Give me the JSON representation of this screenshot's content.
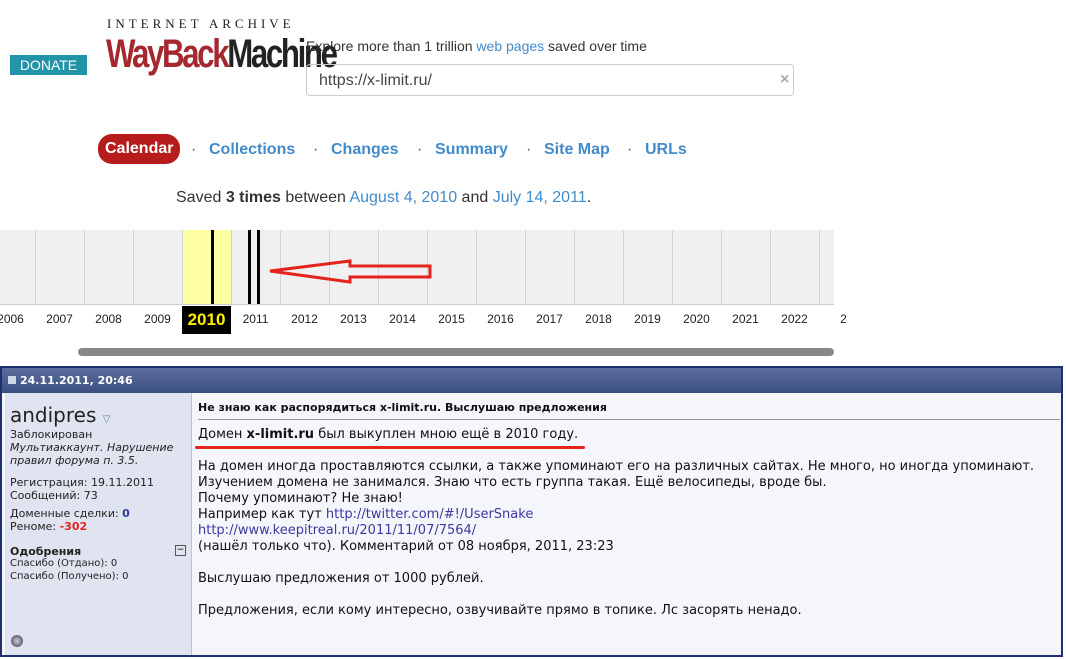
{
  "header": {
    "donate": "DONATE",
    "logo_top": "INTERNET ARCHIVE",
    "logo_wayback": "WayBack",
    "logo_machine": "Machine",
    "explore_prefix": "Explore more than 1 trillion ",
    "explore_link": "web pages",
    "explore_suffix": " saved over time",
    "search_value": "https://x-limit.ru/",
    "clear": "×"
  },
  "tabs": [
    "Calendar",
    "Collections",
    "Changes",
    "Summary",
    "Site Map",
    "URLs"
  ],
  "saved": {
    "prefix": "Saved ",
    "count": "3 times",
    "between": " between ",
    "first": "August 4, 2010",
    "and": " and ",
    "last": "July 14, 2011",
    "end": "."
  },
  "timeline": {
    "years": [
      "2006",
      "2007",
      "2008",
      "2009",
      "2010",
      "2011",
      "2012",
      "2013",
      "2014",
      "2015",
      "2016",
      "2017",
      "2018",
      "2019",
      "2020",
      "2021",
      "2022",
      "2"
    ],
    "selected": "2010",
    "highlight_color": "#ffffa5"
  },
  "post": {
    "date": "24.11.2011, 20:46",
    "user": "andipres",
    "status": "Заблокирован",
    "reason1": "Мультиаккаунт. Нарушение",
    "reason2": "правил форума п. 3.5.",
    "reg": "Регистрация: 19.11.2011",
    "msgs": "Сообщений: 73",
    "deals_label": "Доменные сделки: ",
    "deals": "0",
    "rep_label": "Реноме: ",
    "rep": "-302",
    "thanks_title": "Одобрения",
    "given": "Спасибо (Отдано): 0",
    "received": "Спасибо (Получено): 0",
    "title": "Не знаю как распорядиться x-limit.ru. Выслушаю предложения",
    "l1a": "Домен ",
    "l1b": "x-limit.ru",
    "l1c": " был выкуплен мною ещё в 2010 году.",
    "l2": "На домен иногда проставляются ссылки, а также упоминают его на различных сайтах. Не много, но иногда упоминают.",
    "l3": "Изучением домена не занимался. Знаю что есть группа такая. Ещё велосипеды, вроде бы.",
    "l4": "Почему упоминают? Не знаю!",
    "l5a": "Например как тут ",
    "l5b": "http://twitter.com/#!/UserSnake",
    "l6": "http://www.keepitreal.ru/2011/11/07/7564/",
    "l7": "(нашёл только что). Комментарий от 08 ноября, 2011, 23:23",
    "l8": "Выслушаю предложения от 1000 рублей.",
    "l9": "Предложения, если кому интересно, озвучивайте прямо в топике. Лс засорять ненадо."
  }
}
